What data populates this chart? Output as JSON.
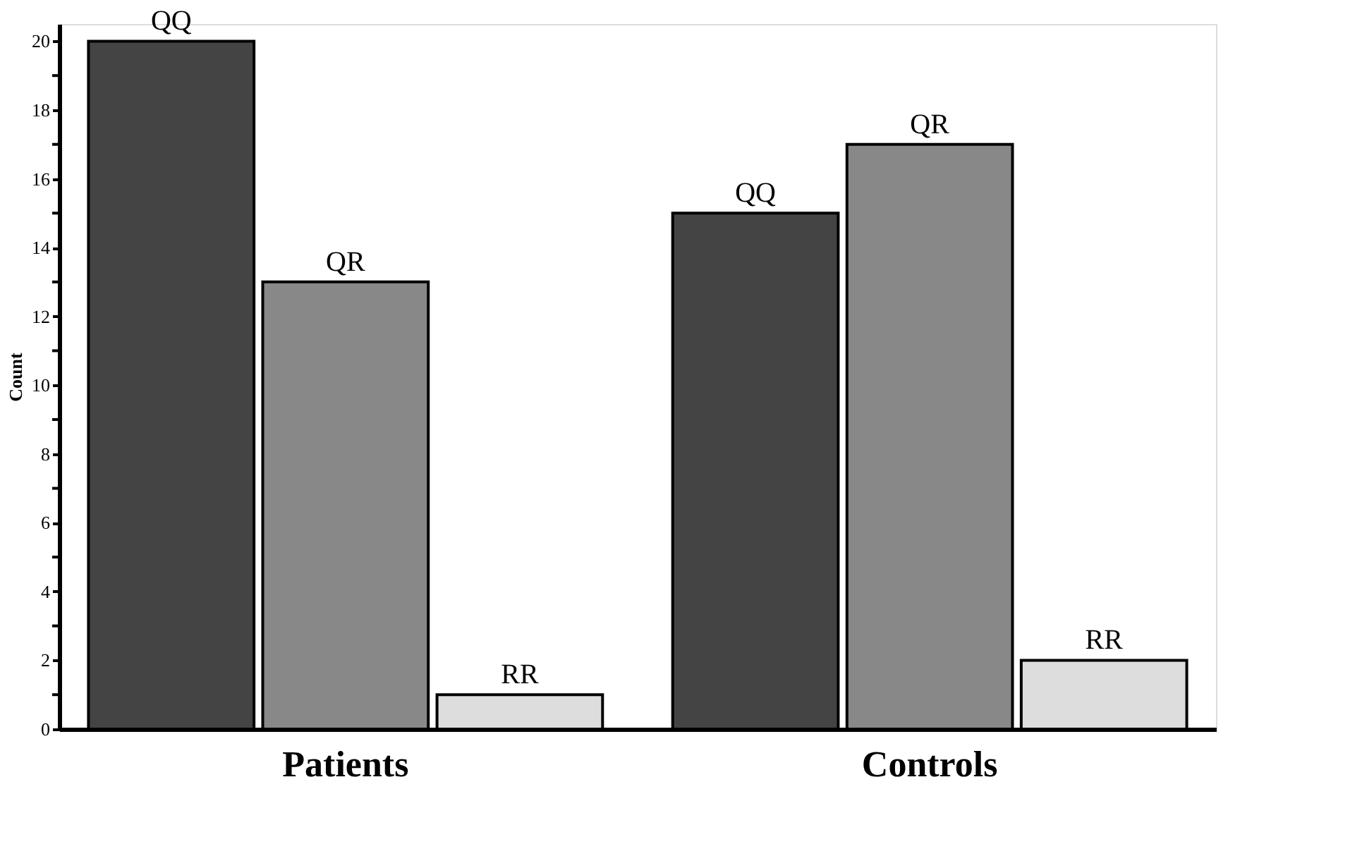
{
  "chart_data": {
    "type": "bar",
    "ylabel": "Count",
    "categories": [
      "Patients",
      "Controls"
    ],
    "series": [
      {
        "name": "QQ",
        "color": "#444444",
        "values": [
          20,
          15
        ]
      },
      {
        "name": "QR",
        "color": "#888888",
        "values": [
          13,
          17
        ]
      },
      {
        "name": "RR",
        "color": "#dddddd",
        "values": [
          1,
          2
        ]
      }
    ],
    "ylim": [
      0,
      20.5
    ],
    "yticks": [
      0,
      {
        "value": 1,
        "label": null
      },
      2,
      {
        "value": 3,
        "label": null
      },
      4,
      {
        "value": 5,
        "label": null
      },
      6,
      {
        "value": 7,
        "label": null
      },
      8,
      {
        "value": 9,
        "label": null
      },
      10,
      {
        "value": 11,
        "label": null
      },
      12,
      {
        "value": 13,
        "label": null
      },
      14,
      {
        "value": 15,
        "label": null
      },
      16,
      {
        "value": 17,
        "label": null
      },
      18,
      {
        "value": 19,
        "label": null
      },
      20
    ]
  }
}
